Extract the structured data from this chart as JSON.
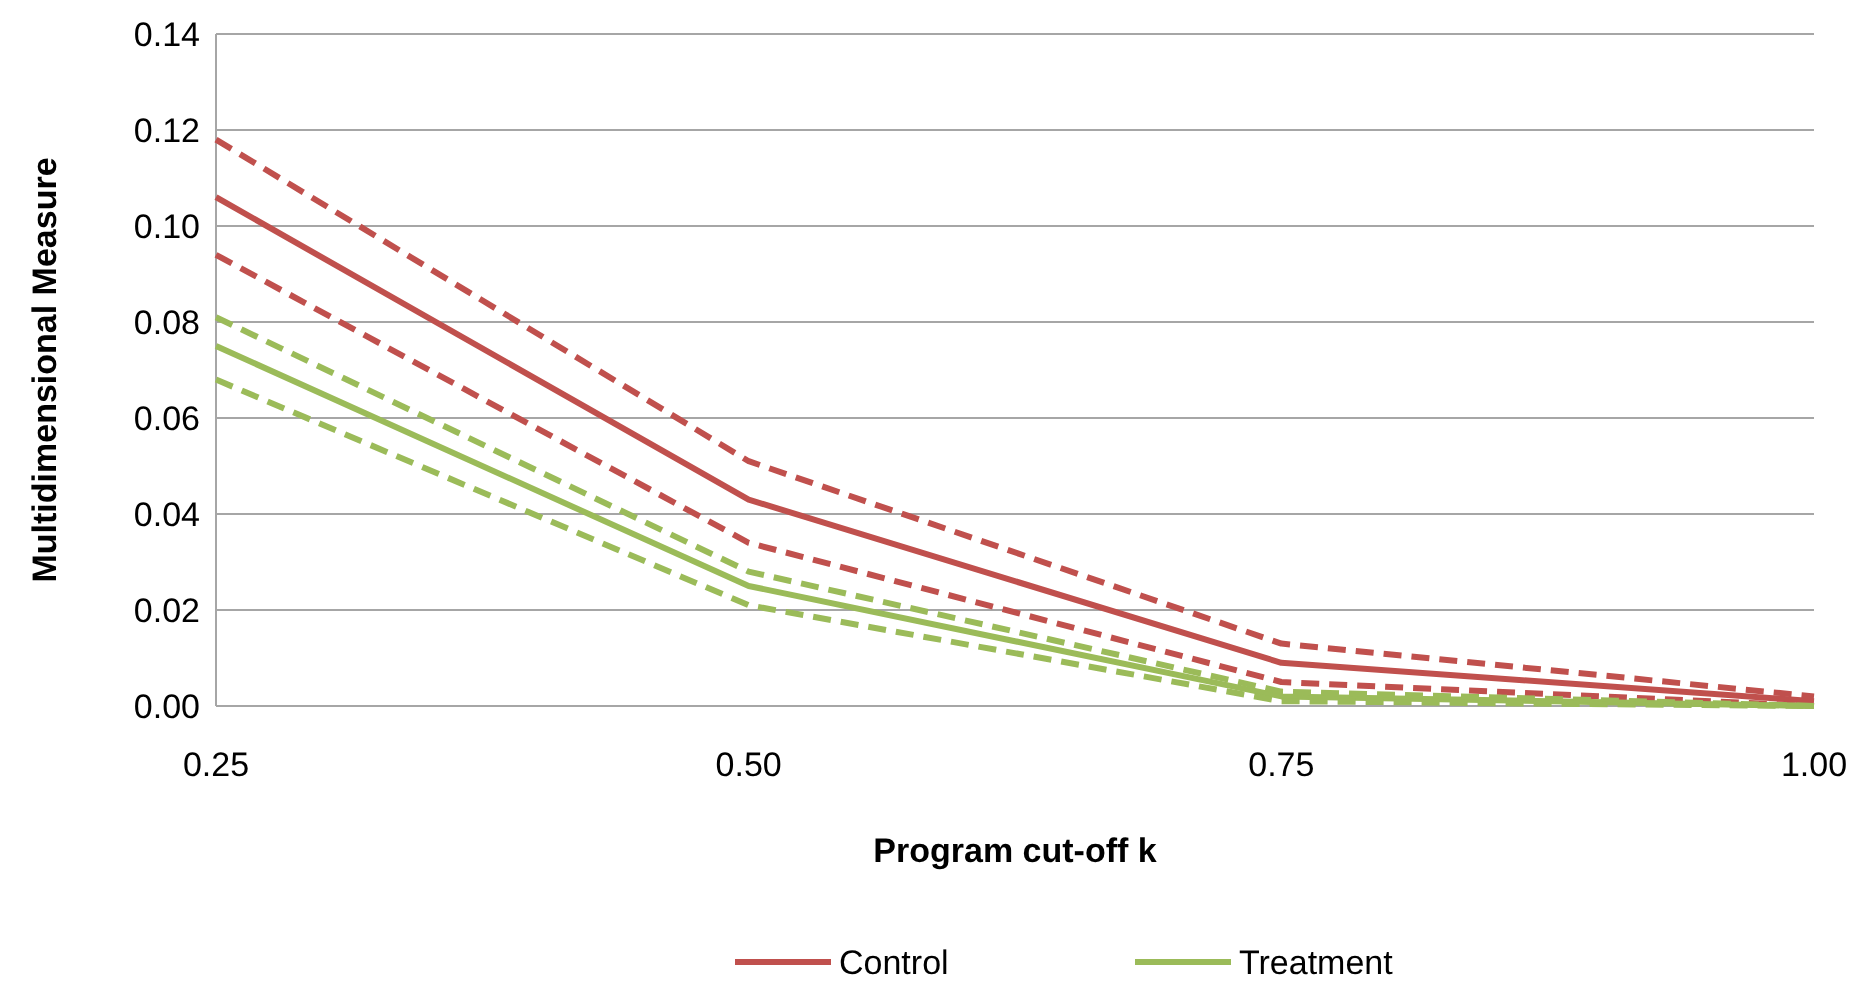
{
  "chart_data": {
    "type": "line",
    "xlabel": "Program cut-off k",
    "ylabel": "Multidimensional Measure",
    "x": [
      0.25,
      0.5,
      0.75,
      1.0
    ],
    "xlim": [
      0.25,
      1.0
    ],
    "xticks": [
      {
        "value": 0.25,
        "label": "0.25"
      },
      {
        "value": 0.5,
        "label": "0.50"
      },
      {
        "value": 0.75,
        "label": "0.75"
      },
      {
        "value": 1.0,
        "label": "1.00"
      }
    ],
    "ylim": [
      0,
      0.14
    ],
    "yticks": [
      {
        "value": 0,
        "label": "0.00"
      },
      {
        "value": 0.02,
        "label": "0.02"
      },
      {
        "value": 0.04,
        "label": "0.04"
      },
      {
        "value": 0.06,
        "label": "0.06"
      },
      {
        "value": 0.08,
        "label": "0.08"
      },
      {
        "value": 0.1,
        "label": "0.10"
      },
      {
        "value": 0.12,
        "label": "0.12"
      },
      {
        "value": 0.14,
        "label": "0.14"
      }
    ],
    "grid": "y",
    "legend": "bottom",
    "series": [
      {
        "name": "Control",
        "color": "#c0504d",
        "values": [
          0.106,
          0.043,
          0.009,
          0.001
        ],
        "line_style": "solid"
      },
      {
        "color": "#c0504d",
        "values": [
          0.118,
          0.051,
          0.013,
          0.002
        ],
        "line_style": "dashed"
      },
      {
        "color": "#c0504d",
        "values": [
          0.094,
          0.034,
          0.005,
          0.0
        ],
        "line_style": "dashed"
      },
      {
        "name": "Treatment",
        "color": "#9bbb59",
        "values": [
          0.075,
          0.025,
          0.002,
          0.0
        ],
        "line_style": "solid"
      },
      {
        "color": "#9bbb59",
        "values": [
          0.081,
          0.028,
          0.003,
          0.0
        ],
        "line_style": "dashed"
      },
      {
        "color": "#9bbb59",
        "values": [
          0.068,
          0.021,
          0.001,
          0.0
        ],
        "line_style": "dashed"
      }
    ]
  }
}
